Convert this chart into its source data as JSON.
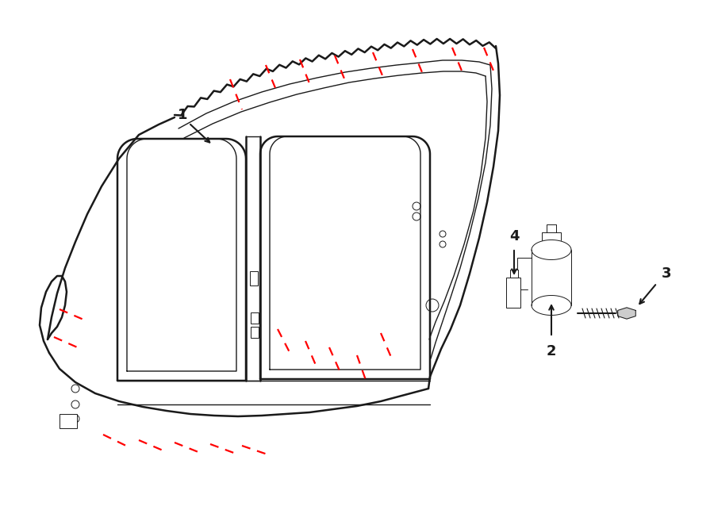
{
  "bg_color": "#ffffff",
  "line_color": "#1a1a1a",
  "red_color": "#ff0000",
  "label_color": "#000000",
  "fig_w": 9.0,
  "fig_h": 6.62,
  "dpi": 100,
  "lw_outer": 1.8,
  "lw_inner": 1.0,
  "lw_detail": 0.7,
  "lw_red": 1.6,
  "label_fontsize": 13
}
